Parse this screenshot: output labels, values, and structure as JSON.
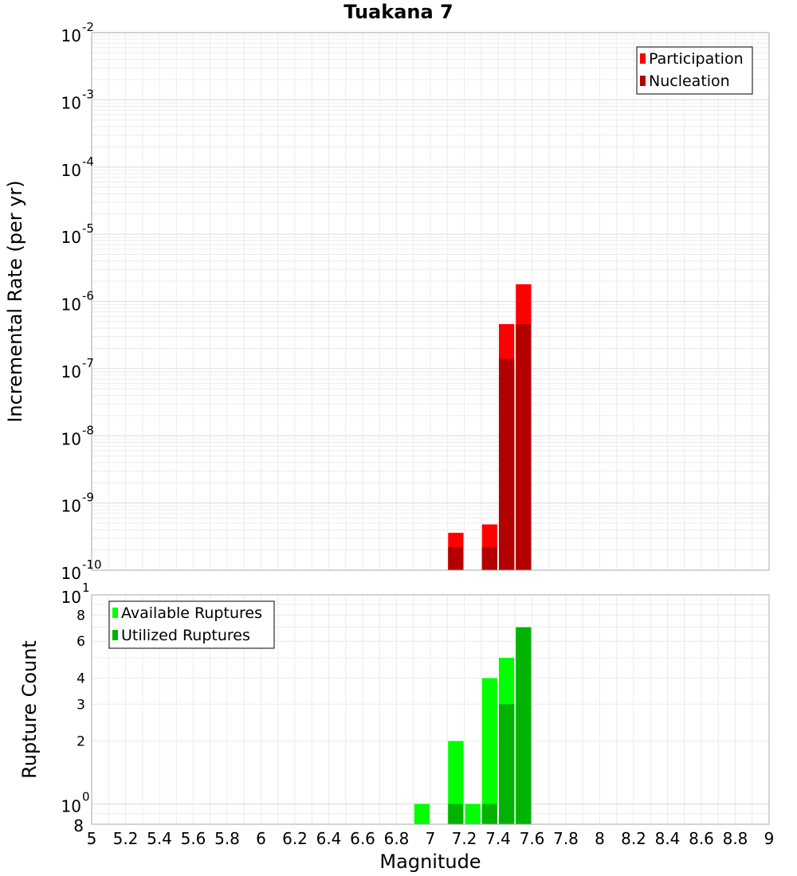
{
  "chart_data": {
    "title": "Tuakana 7",
    "xlabel": "Magnitude",
    "xlim": [
      5,
      9
    ],
    "x_ticks": [
      "5",
      "5.2",
      "5.4",
      "5.6",
      "5.8",
      "6",
      "6.2",
      "6.4",
      "6.6",
      "6.8",
      "7",
      "7.2",
      "7.4",
      "7.6",
      "7.8",
      "8",
      "8.2",
      "8.4",
      "8.6",
      "8.8",
      "9"
    ],
    "bar_width": 0.1,
    "grid": true,
    "panels": [
      {
        "type": "bar",
        "ylabel": "Incremental Rate (per yr)",
        "yscale": "log",
        "ylim": [
          1e-10,
          0.01
        ],
        "y_ticks": [
          {
            "base": "10",
            "exp": "-2"
          },
          {
            "base": "10",
            "exp": "-3"
          },
          {
            "base": "10",
            "exp": "-4"
          },
          {
            "base": "10",
            "exp": "-5"
          },
          {
            "base": "10",
            "exp": "-6"
          },
          {
            "base": "10",
            "exp": "-7"
          },
          {
            "base": "10",
            "exp": "-8"
          },
          {
            "base": "10",
            "exp": "-9"
          },
          {
            "base": "10",
            "exp": "-10"
          }
        ],
        "legend_position": "top-right",
        "series": [
          {
            "name": "Participation",
            "color": "#ff0000",
            "x": [
              7.15,
              7.35,
              7.45,
              7.55
            ],
            "values": [
              3.6e-10,
              4.8e-10,
              4.6e-07,
              1.8e-06
            ]
          },
          {
            "name": "Nucleation",
            "color": "#b30000",
            "x": [
              7.15,
              7.35,
              7.45,
              7.55
            ],
            "values": [
              2.2e-10,
              2.2e-10,
              1.4e-07,
              4.6e-07
            ]
          }
        ]
      },
      {
        "type": "bar",
        "ylabel": "Rupture Count",
        "yscale": "log",
        "ylim": [
          0.8,
          10
        ],
        "y_ticks": [
          {
            "value": 10,
            "base": "10",
            "exp": "1",
            "major": true
          },
          {
            "value": 8,
            "label": "8"
          },
          {
            "value": 6,
            "label": "6"
          },
          {
            "value": 4,
            "label": "4"
          },
          {
            "value": 3,
            "label": "3"
          },
          {
            "value": 2,
            "label": "2"
          },
          {
            "value": 1,
            "base": "10",
            "exp": "0",
            "major": true
          },
          {
            "value": 0.8,
            "label": "8",
            "major": true
          }
        ],
        "legend_position": "top-left",
        "series": [
          {
            "name": "Available Ruptures",
            "color": "#00ff00",
            "x": [
              6.95,
              7.15,
              7.25,
              7.35,
              7.45,
              7.55
            ],
            "values": [
              1,
              2,
              1,
              4,
              5,
              7
            ]
          },
          {
            "name": "Utilized Ruptures",
            "color": "#00b300",
            "x": [
              7.15,
              7.35,
              7.45,
              7.55
            ],
            "values": [
              1,
              1,
              3,
              7
            ]
          }
        ]
      }
    ]
  }
}
